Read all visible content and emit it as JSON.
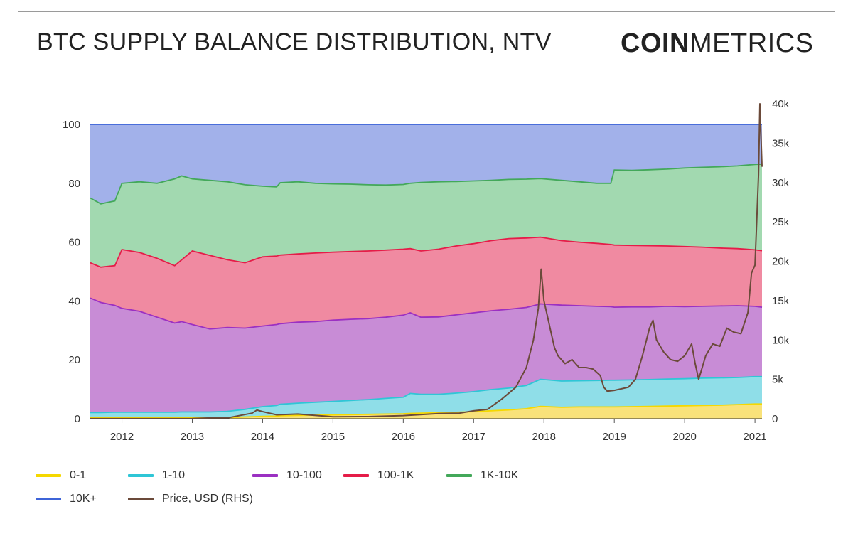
{
  "header": {
    "title": "BTC SUPPLY BALANCE DISTRIBUTION, NTV",
    "logo_bold": "COIN",
    "logo_light": "METRICS"
  },
  "chart_data": {
    "type": "area",
    "title": "BTC SUPPLY BALANCE DISTRIBUTION, NTV",
    "x_tick_labels": [
      "2012",
      "2013",
      "2014",
      "2015",
      "2016",
      "2017",
      "2018",
      "2019",
      "2020",
      "2021"
    ],
    "y_left_ticks": [
      "0",
      "20",
      "40",
      "60",
      "80",
      "100"
    ],
    "y_left_range": [
      0,
      100
    ],
    "y_right_ticks": [
      "0",
      "5k",
      "10k",
      "15k",
      "20k",
      "25k",
      "30k",
      "35k",
      "40k"
    ],
    "y_right_range": [
      0,
      40000
    ],
    "x_range": [
      2011.55,
      2021.1
    ],
    "stacked_cumulative": {
      "x": [
        2011.55,
        2011.7,
        2011.9,
        2012.0,
        2012.25,
        2012.5,
        2012.75,
        2012.85,
        2013.0,
        2013.25,
        2013.5,
        2013.75,
        2014.0,
        2014.2,
        2014.25,
        2014.5,
        2014.75,
        2015.0,
        2015.25,
        2015.5,
        2015.75,
        2016.0,
        2016.1,
        2016.25,
        2016.5,
        2016.75,
        2017.0,
        2017.25,
        2017.5,
        2017.75,
        2017.95,
        2018.25,
        2018.5,
        2018.75,
        2018.95,
        2019.0,
        2019.25,
        2019.5,
        2019.75,
        2020.0,
        2020.25,
        2020.5,
        2020.75,
        2021.0,
        2021.1
      ],
      "series": [
        {
          "name": "0-1",
          "color": "#f9e27a",
          "values": [
            0.3,
            0.3,
            0.3,
            0.3,
            0.3,
            0.3,
            0.3,
            0.3,
            0.3,
            0.3,
            0.4,
            0.6,
            0.8,
            0.9,
            1.0,
            1.1,
            1.2,
            1.3,
            1.4,
            1.5,
            1.6,
            1.7,
            1.8,
            1.9,
            2.0,
            2.2,
            2.4,
            2.7,
            3.0,
            3.4,
            4.2,
            3.9,
            4.0,
            4.0,
            4.0,
            4.0,
            4.1,
            4.2,
            4.3,
            4.4,
            4.5,
            4.6,
            4.8,
            5.0,
            5.0
          ]
        },
        {
          "name": "1-10",
          "color": "#8fdee8",
          "values": [
            2.1,
            2.1,
            2.2,
            2.2,
            2.2,
            2.2,
            2.2,
            2.3,
            2.3,
            2.3,
            2.5,
            3.2,
            4.1,
            4.5,
            4.9,
            5.3,
            5.6,
            5.9,
            6.2,
            6.5,
            6.9,
            7.3,
            8.6,
            8.3,
            8.3,
            8.7,
            9.2,
            9.9,
            10.4,
            11.3,
            13.4,
            12.8,
            12.9,
            13.0,
            13.1,
            13.1,
            13.2,
            13.3,
            13.5,
            13.6,
            13.8,
            13.9,
            14.0,
            14.3,
            14.3
          ]
        },
        {
          "name": "10-100",
          "color": "#c88cd6",
          "values": [
            41.0,
            39.5,
            38.5,
            37.5,
            36.5,
            34.5,
            32.5,
            33.0,
            32.0,
            30.5,
            31.0,
            30.8,
            31.5,
            32.0,
            32.3,
            32.8,
            33.0,
            33.5,
            33.8,
            34.0,
            34.5,
            35.2,
            36.0,
            34.5,
            34.6,
            35.3,
            36.0,
            36.7,
            37.2,
            37.8,
            39.0,
            38.6,
            38.4,
            38.2,
            38.1,
            37.9,
            38.0,
            38.0,
            38.2,
            38.1,
            38.2,
            38.3,
            38.4,
            38.2,
            37.9
          ]
        },
        {
          "name": "100-1K",
          "color": "#f08aa1",
          "values": [
            53.0,
            51.5,
            52.0,
            57.5,
            56.5,
            54.5,
            52.0,
            54.0,
            57.0,
            55.5,
            54.0,
            53.0,
            55.0,
            55.3,
            55.6,
            56.0,
            56.3,
            56.6,
            56.8,
            57.0,
            57.3,
            57.6,
            57.8,
            57.0,
            57.6,
            58.7,
            59.5,
            60.5,
            61.2,
            61.4,
            61.7,
            60.5,
            60.0,
            59.6,
            59.2,
            59.0,
            58.9,
            58.8,
            58.7,
            58.5,
            58.3,
            58.0,
            57.8,
            57.4,
            57.1
          ]
        },
        {
          "name": "1K-10K",
          "color": "#a2d9b0",
          "values": [
            75.0,
            73.0,
            74.0,
            80.0,
            80.5,
            80.0,
            81.5,
            82.5,
            81.5,
            81.0,
            80.5,
            79.5,
            79.0,
            78.8,
            80.2,
            80.5,
            80.0,
            79.8,
            79.7,
            79.5,
            79.4,
            79.6,
            80.0,
            80.3,
            80.5,
            80.6,
            80.8,
            81.0,
            81.3,
            81.4,
            81.6,
            81.0,
            80.5,
            80.0,
            80.0,
            84.5,
            84.4,
            84.6,
            84.8,
            85.2,
            85.4,
            85.6,
            85.9,
            86.4,
            86.5
          ]
        },
        {
          "name": "10K+",
          "color": "#a2b1ea",
          "values": [
            100,
            100,
            100,
            100,
            100,
            100,
            100,
            100,
            100,
            100,
            100,
            100,
            100,
            100,
            100,
            100,
            100,
            100,
            100,
            100,
            100,
            100,
            100,
            100,
            100,
            100,
            100,
            100,
            100,
            100,
            100,
            100,
            100,
            100,
            100,
            100,
            100,
            100,
            100,
            100,
            100,
            100,
            100,
            100,
            100
          ]
        }
      ]
    },
    "boundary_colors": [
      "#f5d800",
      "#2fc6d6",
      "#9b30c2",
      "#e51c48",
      "#43a85a",
      "#3e64d8"
    ],
    "price": {
      "name": "Price, USD (RHS)",
      "color": "#6b4a3a",
      "x": [
        2011.55,
        2012.0,
        2012.5,
        2013.0,
        2013.25,
        2013.5,
        2013.85,
        2013.92,
        2014.0,
        2014.2,
        2014.5,
        2015.0,
        2015.5,
        2016.0,
        2016.5,
        2016.8,
        2017.0,
        2017.2,
        2017.4,
        2017.6,
        2017.75,
        2017.85,
        2017.92,
        2017.96,
        2018.0,
        2018.05,
        2018.1,
        2018.15,
        2018.2,
        2018.3,
        2018.4,
        2018.5,
        2018.6,
        2018.7,
        2018.8,
        2018.85,
        2018.9,
        2019.0,
        2019.2,
        2019.3,
        2019.4,
        2019.5,
        2019.55,
        2019.6,
        2019.7,
        2019.8,
        2019.9,
        2020.0,
        2020.1,
        2020.15,
        2020.2,
        2020.3,
        2020.4,
        2020.5,
        2020.6,
        2020.7,
        2020.8,
        2020.9,
        2020.95,
        2021.0,
        2021.02,
        2021.05,
        2021.07,
        2021.1
      ],
      "values": [
        5,
        6,
        10,
        15,
        100,
        110,
        700,
        1100,
        900,
        500,
        600,
        250,
        270,
        400,
        650,
        700,
        1000,
        1200,
        2500,
        4000,
        6500,
        10000,
        14000,
        19000,
        15000,
        13000,
        11000,
        9000,
        8000,
        7000,
        7500,
        6500,
        6500,
        6300,
        5500,
        4000,
        3500,
        3600,
        4000,
        5000,
        8000,
        11500,
        12500,
        10000,
        8500,
        7500,
        7300,
        8000,
        9500,
        7000,
        5000,
        8000,
        9500,
        9200,
        11500,
        11000,
        10800,
        13500,
        18500,
        19500,
        24000,
        31000,
        40000,
        32000
      ]
    }
  },
  "legend": [
    {
      "label": "0-1",
      "color": "#f5d800"
    },
    {
      "label": "1-10",
      "color": "#2fc6d6"
    },
    {
      "label": "10-100",
      "color": "#9b30c2"
    },
    {
      "label": "100-1K",
      "color": "#e51c48"
    },
    {
      "label": "1K-10K",
      "color": "#43a85a"
    },
    {
      "label": "10K+",
      "color": "#3e64d8"
    },
    {
      "label": "Price, USD (RHS)",
      "color": "#6b4a3a"
    }
  ]
}
